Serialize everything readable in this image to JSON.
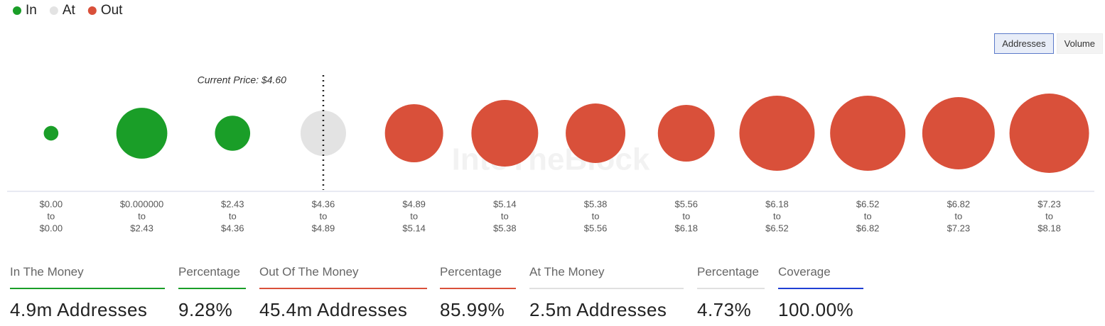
{
  "chart_data": {
    "type": "bubble",
    "categories": [
      {
        "from": "$0.00",
        "to": "$0.00"
      },
      {
        "from": "$0.000000",
        "to": "$2.43"
      },
      {
        "from": "$2.43",
        "to": "$4.36"
      },
      {
        "from": "$4.36",
        "to": "$4.89"
      },
      {
        "from": "$4.89",
        "to": "$5.14"
      },
      {
        "from": "$5.14",
        "to": "$5.38"
      },
      {
        "from": "$5.38",
        "to": "$5.56"
      },
      {
        "from": "$5.56",
        "to": "$6.18"
      },
      {
        "from": "$6.18",
        "to": "$6.52"
      },
      {
        "from": "$6.52",
        "to": "$6.82"
      },
      {
        "from": "$6.82",
        "to": "$7.23"
      },
      {
        "from": "$7.23",
        "to": "$8.18"
      }
    ],
    "range_word": "to",
    "series": [
      {
        "name": "In",
        "color": "#1a9e28",
        "values": [
          0.26,
          3.14,
          1.5,
          null,
          null,
          null,
          null,
          null,
          null,
          null,
          null,
          null
        ]
      },
      {
        "name": "At",
        "color": "#e3e3e3",
        "values": [
          null,
          null,
          null,
          2.5,
          null,
          null,
          null,
          null,
          null,
          null,
          null,
          null
        ]
      },
      {
        "name": "Out",
        "color": "#d9503a",
        "values": [
          null,
          null,
          null,
          null,
          4.1,
          5.39,
          4.3,
          3.9,
          6.85,
          6.85,
          6.35,
          7.65
        ]
      }
    ],
    "annotation": "Current Price: $4.60",
    "watermark": "IntoTheBlock",
    "toggle": [
      "Addresses",
      "Volume"
    ],
    "summary": [
      {
        "label": "In The Money",
        "value": "4.9m Addresses",
        "color": "#1a9e28"
      },
      {
        "label": "Percentage",
        "value": "9.28%",
        "color": "#1a9e28"
      },
      {
        "label": "Out Of The Money",
        "value": "45.4m Addresses",
        "color": "#d9503a"
      },
      {
        "label": "Percentage",
        "value": "85.99%",
        "color": "#d9503a"
      },
      {
        "label": "At The Money",
        "value": "2.5m Addresses",
        "color": "#e0e0e0"
      },
      {
        "label": "Percentage",
        "value": "4.73%",
        "color": "#e0e0e0"
      },
      {
        "label": "Coverage",
        "value": "100.00%",
        "color": "#1f3fd4"
      }
    ]
  }
}
